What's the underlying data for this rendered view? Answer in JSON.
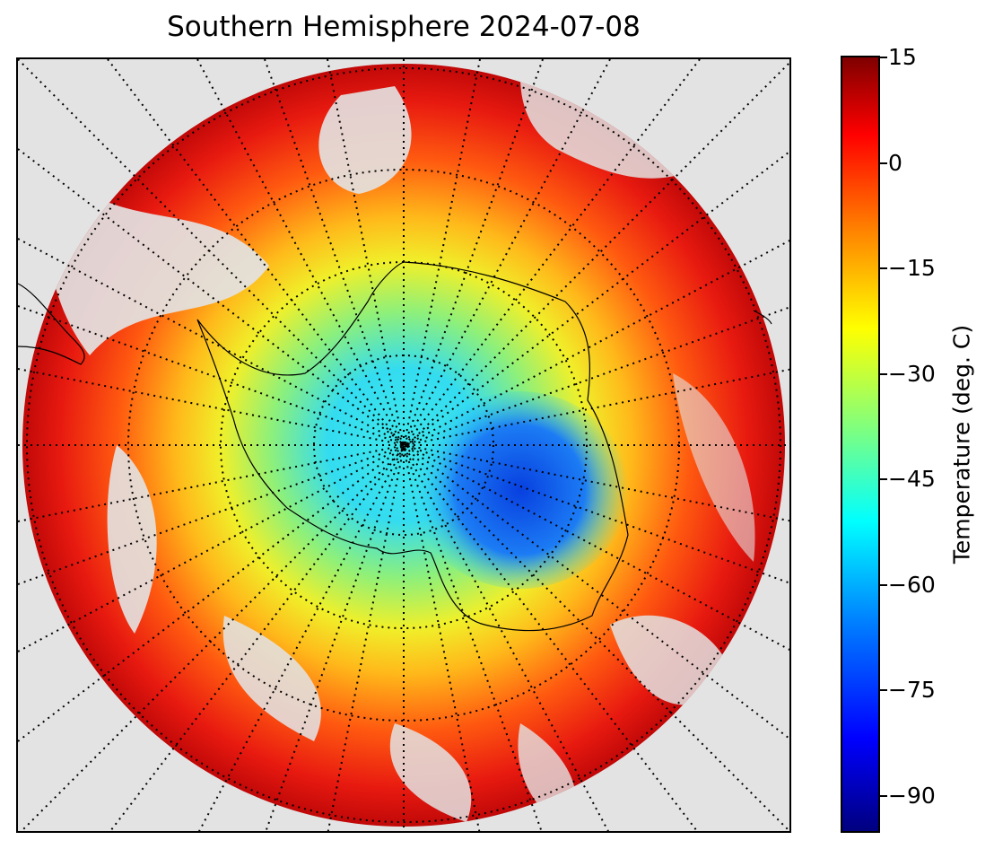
{
  "title": "Southern Hemisphere 2024-07-08",
  "map": {
    "projection": "south-polar-stereographic",
    "variable": "surface temperature",
    "graticule_style": "dotted",
    "background_color": "#e3e3e3",
    "coastline_color": "#000000"
  },
  "colorbar": {
    "label": "Temperature (deg. C)",
    "colormap": "jet",
    "range": [
      -95,
      15
    ],
    "ticks": [
      "15",
      "0",
      "−15",
      "−30",
      "−45",
      "−60",
      "−75",
      "−90"
    ]
  }
}
